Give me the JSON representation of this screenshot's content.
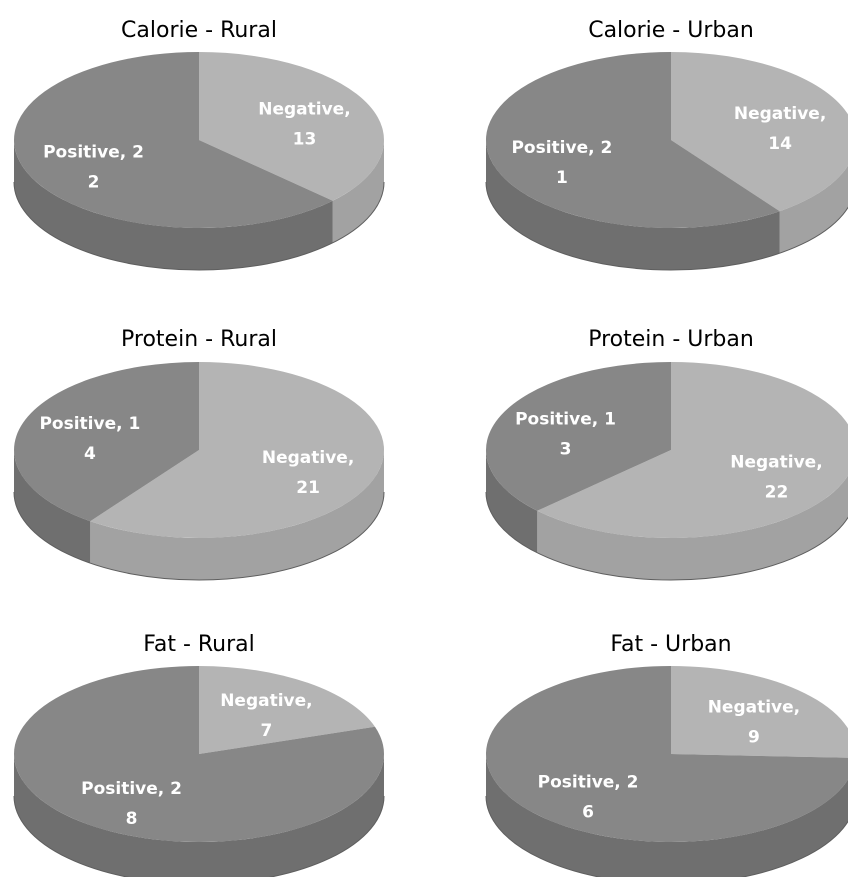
{
  "colors": {
    "negative_top": "#b4b4b4",
    "negative_side": "#a2a2a2",
    "positive_top": "#878787",
    "positive_side": "#6f6f6f",
    "label": "#ffffff",
    "title": "#000000"
  },
  "chart_data": [
    {
      "type": "pie",
      "title": "Calorie - Rural",
      "slices": [
        {
          "name": "Negative",
          "value": 13,
          "label_line1": "Negative,",
          "label_line2": "13"
        },
        {
          "name": "Positive",
          "value": 22,
          "label_line1": "Positive, 2",
          "label_line2": "2"
        }
      ]
    },
    {
      "type": "pie",
      "title": "Calorie - Urban",
      "slices": [
        {
          "name": "Negative",
          "value": 14,
          "label_line1": "Negative,",
          "label_line2": "14"
        },
        {
          "name": "Positive",
          "value": 21,
          "label_line1": "Positive, 2",
          "label_line2": "1"
        }
      ]
    },
    {
      "type": "pie",
      "title": "Protein - Rural",
      "slices": [
        {
          "name": "Negative",
          "value": 21,
          "label_line1": "Negative,",
          "label_line2": "21"
        },
        {
          "name": "Positive",
          "value": 14,
          "label_line1": "Positive, 1",
          "label_line2": "4"
        }
      ]
    },
    {
      "type": "pie",
      "title": "Protein - Urban",
      "slices": [
        {
          "name": "Negative",
          "value": 22,
          "label_line1": "Negative,",
          "label_line2": "22"
        },
        {
          "name": "Positive",
          "value": 13,
          "label_line1": "Positive, 1",
          "label_line2": "3"
        }
      ]
    },
    {
      "type": "pie",
      "title": "Fat - Rural",
      "slices": [
        {
          "name": "Negative",
          "value": 7,
          "label_line1": "Negative,",
          "label_line2": "7"
        },
        {
          "name": "Positive",
          "value": 28,
          "label_line1": "Positive, 2",
          "label_line2": "8"
        }
      ]
    },
    {
      "type": "pie",
      "title": "Fat - Urban",
      "slices": [
        {
          "name": "Negative",
          "value": 9,
          "label_line1": "Negative,",
          "label_line2": "9"
        },
        {
          "name": "Positive",
          "value": 26,
          "label_line1": "Positive, 2",
          "label_line2": "6"
        }
      ]
    }
  ]
}
